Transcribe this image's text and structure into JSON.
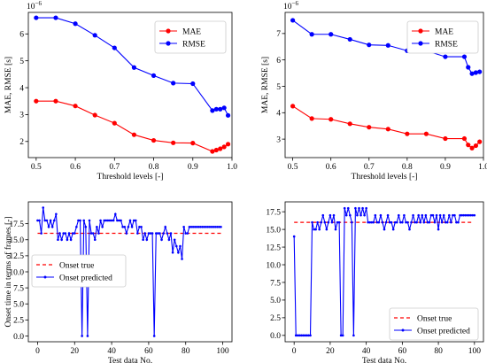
{
  "chart_data": [
    {
      "type": "line",
      "title": "",
      "offset_label": "10",
      "offset_exponent": "−6",
      "xlabel": "Threshold levels [-]",
      "ylabel": "MAE, RMSE [s]",
      "xlim": [
        0.48,
        1.0
      ],
      "ylim": [
        1.4,
        6.8
      ],
      "xticks": [
        0.5,
        0.6,
        0.7,
        0.8,
        0.9,
        1.0
      ],
      "xtick_labels": [
        "0.5",
        "0.6",
        "0.7",
        "0.8",
        "0.9",
        "1.0"
      ],
      "yticks": [
        2,
        3,
        4,
        5,
        6
      ],
      "ytick_labels": [
        "2",
        "3",
        "4",
        "5",
        "6"
      ],
      "grid": false,
      "legend_position": "top-right",
      "x": [
        0.5,
        0.55,
        0.6,
        0.65,
        0.7,
        0.75,
        0.8,
        0.85,
        0.9,
        0.95,
        0.96,
        0.97,
        0.98,
        0.99
      ],
      "series": [
        {
          "name": "MAE",
          "color": "#ff0000",
          "marker": "circle",
          "values": [
            3.5,
            3.5,
            3.32,
            2.98,
            2.68,
            2.25,
            2.04,
            1.95,
            1.94,
            1.63,
            1.68,
            1.73,
            1.8,
            1.9
          ]
        },
        {
          "name": "RMSE",
          "color": "#0000ff",
          "marker": "circle",
          "values": [
            6.6,
            6.6,
            6.38,
            5.95,
            5.48,
            4.75,
            4.45,
            4.17,
            4.15,
            3.15,
            3.2,
            3.2,
            3.25,
            2.97
          ]
        }
      ]
    },
    {
      "type": "line",
      "title": "",
      "offset_label": "10",
      "offset_exponent": "−6",
      "xlabel": "Threshold levels [-]",
      "ylabel": "MAE, RMSE [s]",
      "xlim": [
        0.48,
        1.0
      ],
      "ylim": [
        2.3,
        7.8
      ],
      "xticks": [
        0.5,
        0.6,
        0.7,
        0.8,
        0.9,
        1.0
      ],
      "xtick_labels": [
        "0.5",
        "0.6",
        "0.7",
        "0.8",
        "0.9",
        "1.0"
      ],
      "yticks": [
        3,
        4,
        5,
        6,
        7
      ],
      "ytick_labels": [
        "3",
        "4",
        "5",
        "6",
        "7"
      ],
      "grid": false,
      "legend_position": "top-right",
      "x": [
        0.5,
        0.55,
        0.6,
        0.65,
        0.7,
        0.75,
        0.8,
        0.85,
        0.9,
        0.95,
        0.96,
        0.97,
        0.98,
        0.99
      ],
      "series": [
        {
          "name": "MAE",
          "color": "#ff0000",
          "marker": "circle",
          "values": [
            4.25,
            3.78,
            3.75,
            3.58,
            3.45,
            3.38,
            3.2,
            3.2,
            3.02,
            3.02,
            2.78,
            2.66,
            2.75,
            2.9
          ]
        },
        {
          "name": "RMSE",
          "color": "#0000ff",
          "marker": "circle",
          "values": [
            7.5,
            6.97,
            6.97,
            6.78,
            6.57,
            6.55,
            6.35,
            6.35,
            6.12,
            6.12,
            5.72,
            5.48,
            5.52,
            5.55
          ]
        }
      ]
    },
    {
      "type": "line",
      "title": "",
      "xlabel": "Test data No.",
      "ylabel": "Onset time in terms of frames [-]",
      "xlim": [
        -5,
        105
      ],
      "ylim": [
        -0.9,
        20.9
      ],
      "xticks": [
        0,
        20,
        40,
        60,
        80,
        100
      ],
      "xtick_labels": [
        "0",
        "20",
        "40",
        "60",
        "80",
        "100"
      ],
      "yticks": [
        0.0,
        2.5,
        5.0,
        7.5,
        10.0,
        12.5,
        15.0,
        17.5
      ],
      "ytick_labels": [
        "0.0",
        "2.5",
        "5.0",
        "7.5",
        "10.0",
        "12.5",
        "15.0",
        "17.5"
      ],
      "grid": false,
      "legend_position": "center-left",
      "series": [
        {
          "name": "Onset true",
          "color": "#ff0000",
          "style": "dashed",
          "values": [
            16,
            16
          ]
        },
        {
          "name": "Onset predicted",
          "color": "#0000ff",
          "marker": "dot",
          "values": [
            18,
            18,
            16,
            20,
            18,
            18,
            17,
            18,
            17,
            18,
            19,
            15,
            16,
            15,
            16,
            16,
            15,
            16,
            15,
            16,
            16,
            17,
            18,
            18,
            0,
            18,
            17,
            0,
            18,
            16,
            16,
            15,
            17,
            16,
            18,
            17,
            18,
            18,
            18,
            18,
            18,
            18,
            19,
            18,
            18,
            18,
            17,
            17,
            16,
            17,
            18,
            17,
            18,
            18,
            16,
            17,
            17,
            15,
            16,
            15,
            16,
            16,
            16,
            0,
            16,
            16,
            16,
            15,
            16,
            17,
            16,
            15,
            16,
            13,
            15,
            14,
            13,
            14,
            12,
            17,
            16,
            16,
            17,
            17,
            17,
            17,
            17,
            17,
            17,
            17,
            17,
            17,
            17,
            17,
            17,
            17,
            17,
            17,
            17,
            17
          ]
        }
      ]
    },
    {
      "type": "line",
      "title": "",
      "xlabel": "Test data No.",
      "ylabel": "",
      "xlim": [
        -5,
        105
      ],
      "ylim": [
        -0.9,
        18.9
      ],
      "xticks": [
        0,
        20,
        40,
        60,
        80,
        100
      ],
      "xtick_labels": [
        "0",
        "20",
        "40",
        "60",
        "80",
        "100"
      ],
      "yticks": [
        0.0,
        2.5,
        5.0,
        7.5,
        10.0,
        12.5,
        15.0,
        17.5
      ],
      "ytick_labels": [
        "0.0",
        "2.5",
        "5.0",
        "7.5",
        "10.0",
        "12.5",
        "15.0",
        "17.5"
      ],
      "grid": false,
      "legend_position": "bottom-right",
      "series": [
        {
          "name": "Onset true",
          "color": "#ff0000",
          "style": "dashed",
          "values": [
            16,
            16
          ]
        },
        {
          "name": "Onset predicted",
          "color": "#0000ff",
          "marker": "dot",
          "values": [
            14,
            0,
            0,
            0,
            0,
            0,
            0,
            0,
            0,
            0,
            16,
            15,
            15,
            16,
            15,
            16,
            17,
            16,
            15,
            16,
            17,
            16,
            17,
            15,
            16,
            16,
            0,
            0,
            18,
            17,
            18,
            17,
            16,
            0,
            18,
            17,
            18,
            17,
            18,
            17,
            18,
            16,
            16,
            16,
            16,
            17,
            16,
            16,
            17,
            16,
            15,
            16,
            17,
            16,
            16,
            15,
            16,
            16,
            17,
            16,
            16,
            17,
            16,
            16,
            15,
            16,
            17,
            16,
            16,
            17,
            16,
            17,
            16,
            17,
            16,
            16,
            17,
            17,
            16,
            17,
            15,
            17,
            16,
            17,
            16,
            16,
            17,
            16,
            17,
            17,
            16,
            16,
            17,
            17,
            17,
            17,
            17,
            17,
            17,
            17,
            17
          ]
        }
      ]
    }
  ]
}
